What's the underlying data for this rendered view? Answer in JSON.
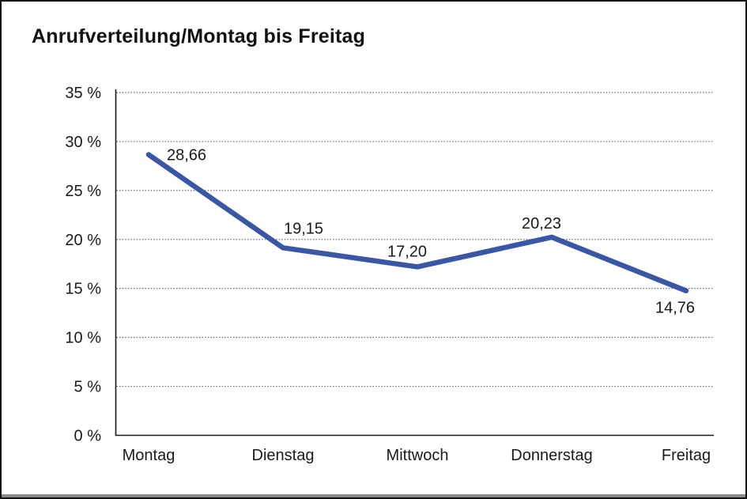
{
  "page": {
    "title": "Anrufverteilung/Montag bis Freitag"
  },
  "colors": {
    "line": "#3A57A5",
    "axis": "#1a1a1a",
    "gridline": "#5f5f5f",
    "text": "#1a1a1a",
    "frame": "#141414",
    "bottom_shadow": "#8c8c8c",
    "background": "#ffffff"
  },
  "chart_data": {
    "type": "line",
    "title": "Anrufverteilung/Montag bis Freitag",
    "categories": [
      "Montag",
      "Dienstag",
      "Mittwoch",
      "Donnerstag",
      "Freitag"
    ],
    "series": [
      {
        "name": "Anrufverteilung",
        "values": [
          28.66,
          19.15,
          17.2,
          20.23,
          14.76
        ],
        "value_labels": [
          "28,66",
          "19,15",
          "17,20",
          "20,23",
          "14,76"
        ],
        "color": "#3A57A5"
      }
    ],
    "xlabel": "",
    "ylabel": "",
    "ylim": [
      0,
      35
    ],
    "y_tick_step": 5,
    "y_ticks": [
      {
        "value": 0,
        "label": "0 %"
      },
      {
        "value": 5,
        "label": "5 %"
      },
      {
        "value": 10,
        "label": "10 %"
      },
      {
        "value": 15,
        "label": "15 %"
      },
      {
        "value": 20,
        "label": "20 %"
      },
      {
        "value": 25,
        "label": "25 %"
      },
      {
        "value": 30,
        "label": "30 %"
      },
      {
        "value": 35,
        "label": "35 %"
      }
    ],
    "grid": "horizontal-dotted",
    "legend_position": "none",
    "marker": "none"
  }
}
